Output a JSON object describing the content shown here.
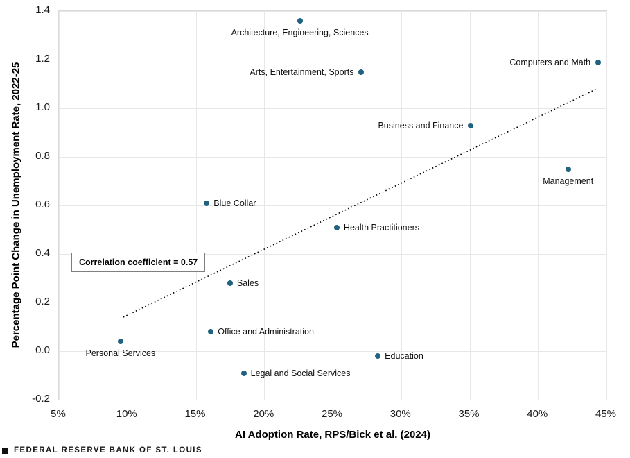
{
  "chart_data": {
    "type": "scatter",
    "xlabel": "AI Adoption Rate, RPS/Bick et al. (2024)",
    "ylabel": "Percentage Point Change in Unemployment Rate, 2022-25",
    "xlim": [
      5,
      45
    ],
    "ylim": [
      -0.2,
      1.4
    ],
    "grid": true,
    "point_color": "#20627f",
    "x_ticks": [
      {
        "value": 5,
        "label": "5%"
      },
      {
        "value": 10,
        "label": "10%"
      },
      {
        "value": 15,
        "label": "15%"
      },
      {
        "value": 20,
        "label": "20%"
      },
      {
        "value": 25,
        "label": "25%"
      },
      {
        "value": 30,
        "label": "30%"
      },
      {
        "value": 35,
        "label": "35%"
      },
      {
        "value": 40,
        "label": "40%"
      },
      {
        "value": 45,
        "label": "45%"
      }
    ],
    "y_ticks": [
      {
        "value": -0.2,
        "label": "-0.2"
      },
      {
        "value": 0.0,
        "label": "0.0"
      },
      {
        "value": 0.2,
        "label": "0.2"
      },
      {
        "value": 0.4,
        "label": "0.4"
      },
      {
        "value": 0.6,
        "label": "0.6"
      },
      {
        "value": 0.8,
        "label": "0.8"
      },
      {
        "value": 1.0,
        "label": "1.0"
      },
      {
        "value": 1.2,
        "label": "1.2"
      },
      {
        "value": 1.4,
        "label": "1.4"
      }
    ],
    "points": [
      {
        "label": "Architecture, Engineering, Sciences",
        "x": 22.6,
        "y": 1.36,
        "label_side": "below"
      },
      {
        "label": "Arts, Entertainment, Sports",
        "x": 27.1,
        "y": 1.15,
        "label_side": "left"
      },
      {
        "label": "Computers and Math",
        "x": 44.4,
        "y": 1.19,
        "label_side": "left"
      },
      {
        "label": "Business and Finance",
        "x": 35.1,
        "y": 0.93,
        "label_side": "left"
      },
      {
        "label": "Management",
        "x": 42.2,
        "y": 0.75,
        "label_side": "below"
      },
      {
        "label": "Blue Collar",
        "x": 15.8,
        "y": 0.61,
        "label_side": "right"
      },
      {
        "label": "Health Practitioners",
        "x": 25.3,
        "y": 0.51,
        "label_side": "right"
      },
      {
        "label": "Sales",
        "x": 17.5,
        "y": 0.28,
        "label_side": "right"
      },
      {
        "label": "Office and Administration",
        "x": 16.1,
        "y": 0.08,
        "label_side": "right"
      },
      {
        "label": "Personal Services",
        "x": 9.5,
        "y": 0.04,
        "label_side": "below"
      },
      {
        "label": "Education",
        "x": 28.3,
        "y": -0.02,
        "label_side": "right"
      },
      {
        "label": "Legal and Social Services",
        "x": 18.5,
        "y": -0.09,
        "label_side": "right"
      }
    ],
    "trendline": {
      "x1": 9.7,
      "y1": 0.14,
      "x2": 44.3,
      "y2": 1.08,
      "color": "#000000",
      "style": "dotted"
    },
    "annotation": {
      "text": "Correlation coefficient = 0.57"
    }
  },
  "footer": {
    "logo": "square-icon",
    "brand": "FEDERAL RESERVE BANK OF ST. LOUIS"
  }
}
